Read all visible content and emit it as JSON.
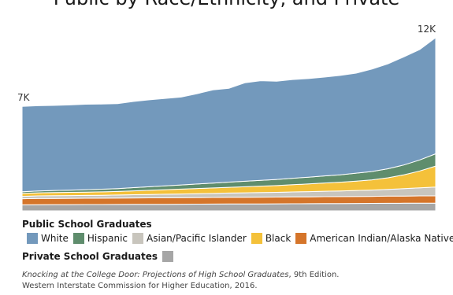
{
  "title": "Public by Race/Ethnicity, and Private",
  "chart_data": {
    "type": "area",
    "stacked": true,
    "x": [
      "1",
      "2",
      "3",
      "4",
      "5",
      "6",
      "7",
      "8",
      "9",
      "10",
      "11",
      "12",
      "13",
      "14",
      "15",
      "16",
      "17",
      "18",
      "19",
      "20",
      "21",
      "22",
      "23",
      "24",
      "25",
      "26",
      "27"
    ],
    "ylim": [
      0,
      12000
    ],
    "annotations": [
      {
        "label": "7K",
        "at": "start",
        "value": 7000
      },
      {
        "label": "12K",
        "at": "end",
        "value": 12000
      }
    ],
    "series": [
      {
        "name": "Private School Graduates",
        "color": "#a6a6a6",
        "values": [
          370,
          380,
          385,
          385,
          390,
          390,
          395,
          400,
          405,
          405,
          410,
          415,
          420,
          425,
          430,
          430,
          435,
          440,
          445,
          450,
          455,
          460,
          465,
          470,
          475,
          480,
          480
        ]
      },
      {
        "name": "American Indian/Alaska Native",
        "color": "#d5752a",
        "values": [
          380,
          385,
          385,
          390,
          390,
          395,
          395,
          400,
          400,
          405,
          405,
          410,
          410,
          415,
          415,
          420,
          420,
          425,
          425,
          430,
          430,
          435,
          435,
          440,
          440,
          445,
          445
        ]
      },
      {
        "name": "Asian/Pacific Islander",
        "color": "#c8c5bd",
        "values": [
          150,
          160,
          165,
          170,
          175,
          180,
          190,
          200,
          210,
          220,
          230,
          240,
          250,
          260,
          270,
          280,
          290,
          305,
          320,
          335,
          350,
          370,
          390,
          420,
          460,
          500,
          550
        ]
      },
      {
        "name": "Black",
        "color": "#f4c13a",
        "values": [
          180,
          190,
          200,
          200,
          205,
          210,
          220,
          240,
          260,
          280,
          300,
          320,
          340,
          360,
          380,
          400,
          420,
          450,
          480,
          510,
          540,
          580,
          630,
          720,
          860,
          1050,
          1300
        ]
      },
      {
        "name": "Hispanic",
        "color": "#5f8d6d",
        "values": [
          100,
          120,
          130,
          140,
          150,
          165,
          180,
          200,
          220,
          240,
          260,
          280,
          300,
          320,
          340,
          360,
          380,
          400,
          420,
          440,
          460,
          490,
          520,
          560,
          610,
          680,
          760
        ]
      },
      {
        "name": "White",
        "color": "#7399bc",
        "values": [
          5300,
          5280,
          5270,
          5280,
          5300,
          5280,
          5270,
          5340,
          5390,
          5420,
          5450,
          5600,
          5780,
          5820,
          6100,
          6180,
          6090,
          6120,
          6110,
          6130,
          6160,
          6200,
          6350,
          6500,
          6700,
          6850,
          7200
        ]
      }
    ]
  },
  "legend": {
    "public_heading": "Public School Graduates",
    "private_heading": "Private School Graduates",
    "items": [
      {
        "label": "White",
        "color": "#7399bc"
      },
      {
        "label": "Hispanic",
        "color": "#5f8d6d"
      },
      {
        "label": "Asian/Pacific Islander",
        "color": "#c8c5bd"
      },
      {
        "label": "Black",
        "color": "#f4c13a"
      },
      {
        "label": "American Indian/Alaska Native",
        "color": "#d5752a"
      }
    ],
    "private_color": "#a6a6a6"
  },
  "source": {
    "italic": "Knocking at the College Door: Projections of High School Graduates",
    "rest": ", 9th Edition.",
    "line2": "Western Interstate Commission for Higher Education, 2016."
  }
}
